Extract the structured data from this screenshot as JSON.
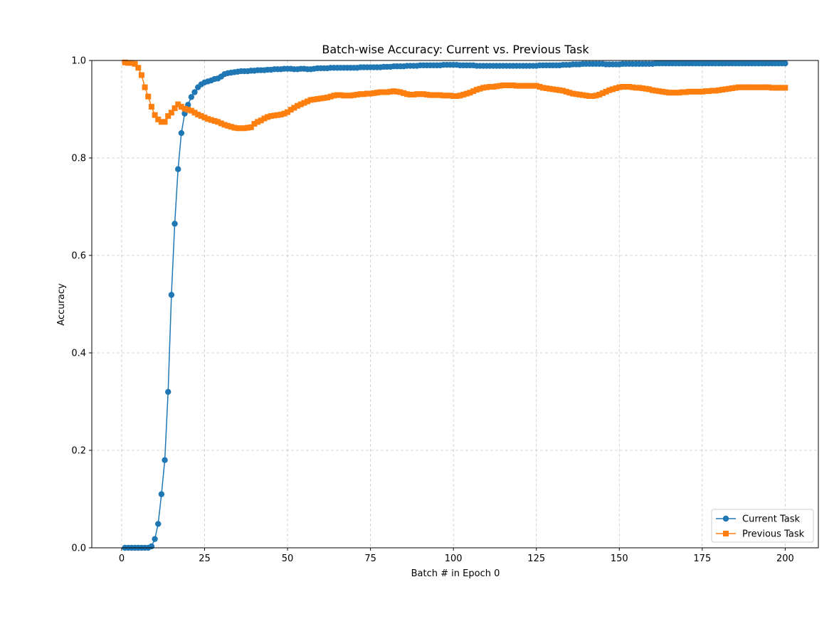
{
  "chart_data": {
    "type": "line",
    "title": "Batch-wise Accuracy: Current vs. Previous Task",
    "xlabel": "Batch # in Epoch 0",
    "ylabel": "Accuracy",
    "xlim": [
      -9,
      210
    ],
    "ylim": [
      0.0,
      1.0
    ],
    "xticks": [
      0,
      25,
      50,
      75,
      100,
      125,
      150,
      175,
      200
    ],
    "yticks": [
      0.0,
      0.2,
      0.4,
      0.6,
      0.8,
      1.0
    ],
    "xtick_labels": [
      "0",
      "25",
      "50",
      "75",
      "100",
      "125",
      "150",
      "175",
      "200"
    ],
    "ytick_labels": [
      "0.0",
      "0.2",
      "0.4",
      "0.6",
      "0.8",
      "1.0"
    ],
    "grid": true,
    "legend_position": "bottom-right",
    "series": [
      {
        "name": "Current Task",
        "color": "#1f77b4",
        "marker": "circle",
        "x": [
          1,
          2,
          3,
          4,
          5,
          6,
          7,
          8,
          9,
          10,
          11,
          12,
          13,
          14,
          15,
          16,
          17,
          18,
          19,
          20,
          21,
          22,
          23,
          24,
          25,
          26,
          27,
          28,
          29,
          30,
          31,
          32,
          33,
          34,
          35,
          36,
          37,
          38,
          39,
          40,
          41,
          42,
          43,
          44,
          45,
          46,
          47,
          48,
          49,
          50,
          51,
          52,
          53,
          54,
          55,
          56,
          57,
          58,
          59,
          60,
          61,
          62,
          63,
          64,
          65,
          66,
          67,
          68,
          69,
          70,
          71,
          72,
          73,
          74,
          75,
          76,
          77,
          78,
          79,
          80,
          81,
          82,
          83,
          84,
          85,
          86,
          87,
          88,
          89,
          90,
          91,
          92,
          93,
          94,
          95,
          96,
          97,
          98,
          99,
          100,
          101,
          102,
          103,
          104,
          105,
          106,
          107,
          108,
          109,
          110,
          111,
          112,
          113,
          114,
          115,
          116,
          117,
          118,
          119,
          120,
          121,
          122,
          123,
          124,
          125,
          126,
          127,
          128,
          129,
          130,
          131,
          132,
          133,
          134,
          135,
          136,
          137,
          138,
          139,
          140,
          141,
          142,
          143,
          144,
          145,
          146,
          147,
          148,
          149,
          150,
          151,
          152,
          153,
          154,
          155,
          156,
          157,
          158,
          159,
          160,
          161,
          162,
          163,
          164,
          165,
          166,
          167,
          168,
          169,
          170,
          171,
          172,
          173,
          174,
          175,
          176,
          177,
          178,
          179,
          180,
          181,
          182,
          183,
          184,
          185,
          186,
          187,
          188,
          189,
          190,
          191,
          192,
          193,
          194,
          195,
          196,
          197,
          198,
          199,
          200
        ],
        "y": [
          0.0,
          0.0,
          0.0,
          0.0,
          0.0,
          0.0,
          0.0,
          0.0,
          0.003,
          0.018,
          0.049,
          0.11,
          0.18,
          0.32,
          0.519,
          0.665,
          0.777,
          0.851,
          0.891,
          0.909,
          0.925,
          0.935,
          0.945,
          0.951,
          0.955,
          0.957,
          0.959,
          0.962,
          0.963,
          0.967,
          0.972,
          0.974,
          0.975,
          0.976,
          0.977,
          0.978,
          0.978,
          0.978,
          0.979,
          0.979,
          0.98,
          0.98,
          0.98,
          0.981,
          0.981,
          0.982,
          0.982,
          0.982,
          0.983,
          0.983,
          0.983,
          0.982,
          0.982,
          0.983,
          0.983,
          0.982,
          0.982,
          0.983,
          0.984,
          0.984,
          0.984,
          0.984,
          0.985,
          0.985,
          0.985,
          0.985,
          0.985,
          0.985,
          0.985,
          0.985,
          0.985,
          0.986,
          0.986,
          0.986,
          0.986,
          0.986,
          0.986,
          0.986,
          0.987,
          0.987,
          0.987,
          0.988,
          0.988,
          0.988,
          0.988,
          0.989,
          0.989,
          0.989,
          0.989,
          0.99,
          0.99,
          0.99,
          0.99,
          0.99,
          0.99,
          0.99,
          0.991,
          0.991,
          0.991,
          0.991,
          0.991,
          0.99,
          0.99,
          0.99,
          0.99,
          0.99,
          0.989,
          0.989,
          0.989,
          0.989,
          0.989,
          0.989,
          0.989,
          0.989,
          0.989,
          0.989,
          0.989,
          0.989,
          0.989,
          0.989,
          0.989,
          0.989,
          0.989,
          0.989,
          0.989,
          0.99,
          0.99,
          0.99,
          0.99,
          0.99,
          0.99,
          0.99,
          0.991,
          0.991,
          0.991,
          0.992,
          0.992,
          0.992,
          0.993,
          0.993,
          0.993,
          0.993,
          0.993,
          0.993,
          0.993,
          0.992,
          0.992,
          0.992,
          0.992,
          0.992,
          0.993,
          0.993,
          0.993,
          0.993,
          0.993,
          0.993,
          0.993,
          0.993,
          0.993,
          0.993,
          0.994,
          0.994,
          0.994,
          0.994,
          0.994,
          0.994,
          0.994,
          0.994,
          0.994,
          0.994,
          0.994,
          0.994,
          0.994,
          0.994,
          0.994,
          0.994,
          0.994,
          0.994,
          0.994,
          0.994,
          0.994,
          0.994,
          0.994,
          0.994,
          0.994,
          0.994,
          0.994,
          0.994,
          0.994,
          0.994,
          0.994,
          0.994,
          0.994,
          0.994,
          0.994,
          0.994,
          0.994,
          0.994,
          0.994,
          0.994
        ]
      },
      {
        "name": "Previous Task",
        "color": "#ff7f0e",
        "marker": "square",
        "x": [
          1,
          2,
          3,
          4,
          5,
          6,
          7,
          8,
          9,
          10,
          11,
          12,
          13,
          14,
          15,
          16,
          17,
          18,
          19,
          20,
          21,
          22,
          23,
          24,
          25,
          26,
          27,
          28,
          29,
          30,
          31,
          32,
          33,
          34,
          35,
          36,
          37,
          38,
          39,
          40,
          41,
          42,
          43,
          44,
          45,
          46,
          47,
          48,
          49,
          50,
          51,
          52,
          53,
          54,
          55,
          56,
          57,
          58,
          59,
          60,
          61,
          62,
          63,
          64,
          65,
          66,
          67,
          68,
          69,
          70,
          71,
          72,
          73,
          74,
          75,
          76,
          77,
          78,
          79,
          80,
          81,
          82,
          83,
          84,
          85,
          86,
          87,
          88,
          89,
          90,
          91,
          92,
          93,
          94,
          95,
          96,
          97,
          98,
          99,
          100,
          101,
          102,
          103,
          104,
          105,
          106,
          107,
          108,
          109,
          110,
          111,
          112,
          113,
          114,
          115,
          116,
          117,
          118,
          119,
          120,
          121,
          122,
          123,
          124,
          125,
          126,
          127,
          128,
          129,
          130,
          131,
          132,
          133,
          134,
          135,
          136,
          137,
          138,
          139,
          140,
          141,
          142,
          143,
          144,
          145,
          146,
          147,
          148,
          149,
          150,
          151,
          152,
          153,
          154,
          155,
          156,
          157,
          158,
          159,
          160,
          161,
          162,
          163,
          164,
          165,
          166,
          167,
          168,
          169,
          170,
          171,
          172,
          173,
          174,
          175,
          176,
          177,
          178,
          179,
          180,
          181,
          182,
          183,
          184,
          185,
          186,
          187,
          188,
          189,
          190,
          191,
          192,
          193,
          194,
          195,
          196,
          197,
          198,
          199,
          200
        ],
        "y": [
          0.996,
          0.995,
          0.995,
          0.993,
          0.985,
          0.97,
          0.945,
          0.926,
          0.905,
          0.888,
          0.879,
          0.874,
          0.874,
          0.886,
          0.893,
          0.902,
          0.91,
          0.905,
          0.901,
          0.899,
          0.897,
          0.893,
          0.889,
          0.886,
          0.883,
          0.88,
          0.878,
          0.876,
          0.874,
          0.871,
          0.868,
          0.866,
          0.864,
          0.862,
          0.861,
          0.861,
          0.861,
          0.862,
          0.863,
          0.87,
          0.874,
          0.877,
          0.881,
          0.884,
          0.886,
          0.887,
          0.888,
          0.889,
          0.891,
          0.894,
          0.899,
          0.903,
          0.907,
          0.91,
          0.913,
          0.916,
          0.919,
          0.92,
          0.921,
          0.922,
          0.923,
          0.924,
          0.926,
          0.928,
          0.929,
          0.929,
          0.928,
          0.928,
          0.928,
          0.929,
          0.93,
          0.931,
          0.931,
          0.932,
          0.932,
          0.933,
          0.934,
          0.935,
          0.935,
          0.935,
          0.936,
          0.937,
          0.936,
          0.935,
          0.933,
          0.931,
          0.93,
          0.93,
          0.931,
          0.931,
          0.931,
          0.93,
          0.929,
          0.929,
          0.929,
          0.929,
          0.928,
          0.928,
          0.928,
          0.927,
          0.927,
          0.928,
          0.93,
          0.932,
          0.934,
          0.937,
          0.94,
          0.942,
          0.944,
          0.945,
          0.946,
          0.946,
          0.947,
          0.948,
          0.949,
          0.949,
          0.949,
          0.949,
          0.948,
          0.948,
          0.948,
          0.948,
          0.948,
          0.948,
          0.948,
          0.946,
          0.944,
          0.943,
          0.942,
          0.941,
          0.94,
          0.939,
          0.938,
          0.936,
          0.934,
          0.932,
          0.931,
          0.93,
          0.929,
          0.928,
          0.927,
          0.927,
          0.928,
          0.93,
          0.933,
          0.936,
          0.939,
          0.941,
          0.943,
          0.945,
          0.946,
          0.946,
          0.946,
          0.945,
          0.944,
          0.944,
          0.943,
          0.942,
          0.941,
          0.939,
          0.938,
          0.937,
          0.936,
          0.935,
          0.934,
          0.934,
          0.934,
          0.934,
          0.935,
          0.935,
          0.936,
          0.936,
          0.936,
          0.936,
          0.936,
          0.937,
          0.937,
          0.938,
          0.938,
          0.939,
          0.94,
          0.941,
          0.942,
          0.943,
          0.944,
          0.945,
          0.945,
          0.945,
          0.945,
          0.945,
          0.945,
          0.945,
          0.945,
          0.945,
          0.945,
          0.944,
          0.944,
          0.944,
          0.944,
          0.944
        ]
      }
    ]
  }
}
